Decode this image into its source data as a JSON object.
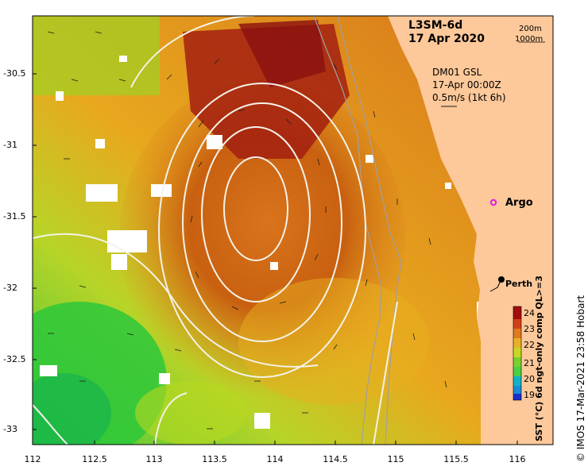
{
  "title": {
    "product": "L3SM-6d",
    "date": "17 Apr 2020"
  },
  "depth_legend": [
    "200m",
    "1000m"
  ],
  "current_info": {
    "model": "DM01 GSL",
    "time": "17-Apr 00:00Z",
    "scale": "0.5m/s (1kt 6h)"
  },
  "places": {
    "argo": "Argo",
    "perth": "Perth"
  },
  "axes": {
    "y_ticks": [
      "-30.5",
      "-31",
      "-31.5",
      "-32",
      "-32.5",
      "-33"
    ],
    "x_ticks": [
      "112",
      "112.5",
      "113",
      "113.5",
      "114",
      "114.5",
      "115",
      "115.5",
      "116"
    ]
  },
  "colorbar": {
    "title": "SST (°C) 6d ngt-only comp QL>=3",
    "ticks": [
      "24",
      "23",
      "22",
      "21",
      "20",
      "19"
    ],
    "colors": {
      "c24": "#a30d0d",
      "c23": "#e07a1e",
      "c22": "#c8d820",
      "c21": "#4ad040",
      "c20": "#12b3c8",
      "c19": "#1a2dcc"
    }
  },
  "credit": "© IMOS 17-Mar-2021 23:58 Hobart",
  "colors": {
    "land": "#fdc89a",
    "argo_marker": "#e020e0"
  }
}
